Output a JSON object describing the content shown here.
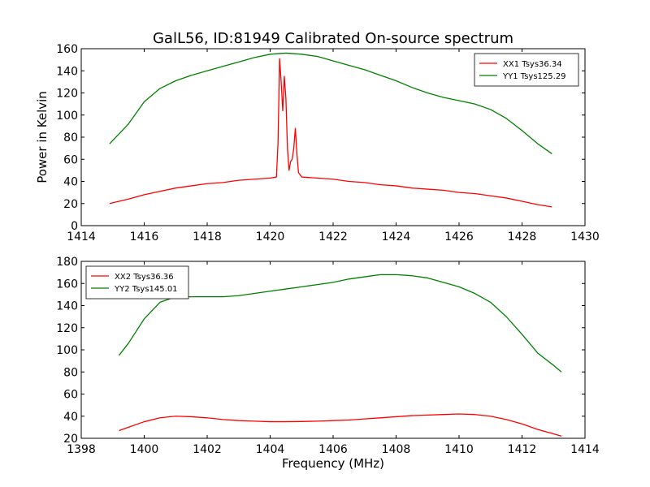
{
  "figure": {
    "title": "GalL56, ID:81949 Calibrated On-source spectrum",
    "ylabel": "Power in Kelvin",
    "xlabel": "Frequency (MHz)"
  },
  "chart_data": [
    {
      "type": "line",
      "title": "GalL56, ID:81949 Calibrated On-source spectrum",
      "xlabel": "",
      "ylabel": "Power in Kelvin",
      "xlim": [
        1414,
        1430
      ],
      "ylim": [
        0,
        160
      ],
      "xticks": [
        1414,
        1416,
        1418,
        1420,
        1422,
        1424,
        1426,
        1428,
        1430
      ],
      "yticks": [
        0,
        20,
        40,
        60,
        80,
        100,
        120,
        140,
        160
      ],
      "grid": false,
      "legend": "upper-right",
      "series": [
        {
          "name": "XX1 Tsys36.34",
          "color": "#ff0000",
          "x": [
            1414.9,
            1415.5,
            1416.0,
            1416.5,
            1417.0,
            1417.5,
            1418.0,
            1418.5,
            1419.0,
            1419.5,
            1420.0,
            1420.2,
            1420.25,
            1420.3,
            1420.35,
            1420.4,
            1420.45,
            1420.5,
            1420.55,
            1420.6,
            1420.65,
            1420.7,
            1420.75,
            1420.8,
            1420.85,
            1420.9,
            1421.0,
            1421.5,
            1422.0,
            1422.5,
            1423.0,
            1423.5,
            1424.0,
            1424.5,
            1425.0,
            1425.5,
            1426.0,
            1426.5,
            1427.0,
            1427.5,
            1428.0,
            1428.5,
            1428.95
          ],
          "y": [
            20,
            24,
            28,
            31,
            34,
            36,
            38,
            39,
            41,
            42,
            43,
            44,
            75,
            151,
            130,
            104,
            135,
            115,
            70,
            50,
            58,
            60,
            70,
            88,
            65,
            48,
            44,
            43,
            42,
            40,
            39,
            37,
            36,
            34,
            33,
            32,
            30,
            29,
            27,
            25,
            22,
            19,
            17
          ]
        },
        {
          "name": "YY1 Tsys125.29",
          "color": "#008000",
          "x": [
            1414.9,
            1415.5,
            1416.0,
            1416.5,
            1417.0,
            1417.5,
            1418.0,
            1418.5,
            1419.0,
            1419.5,
            1420.0,
            1420.5,
            1421.0,
            1421.5,
            1422.0,
            1422.5,
            1423.0,
            1423.5,
            1424.0,
            1424.5,
            1425.0,
            1425.5,
            1426.0,
            1426.5,
            1427.0,
            1427.5,
            1428.0,
            1428.5,
            1428.95
          ],
          "y": [
            74,
            92,
            112,
            124,
            131,
            136,
            140,
            144,
            148,
            152,
            155,
            156,
            155,
            153,
            149,
            145,
            141,
            136,
            131,
            125,
            120,
            116,
            113,
            110,
            105,
            97,
            86,
            74,
            65
          ]
        }
      ]
    },
    {
      "type": "line",
      "title": "",
      "xlabel": "Frequency (MHz)",
      "ylabel": "",
      "xlim": [
        1398,
        1414
      ],
      "ylim": [
        20,
        180
      ],
      "xticks": [
        1398,
        1400,
        1402,
        1404,
        1406,
        1408,
        1410,
        1412,
        1414
      ],
      "yticks": [
        20,
        40,
        60,
        80,
        100,
        120,
        140,
        160,
        180
      ],
      "grid": false,
      "legend": "upper-left",
      "series": [
        {
          "name": "XX2 Tsys36.36",
          "color": "#ff0000",
          "x": [
            1399.2,
            1399.5,
            1400.0,
            1400.5,
            1401.0,
            1401.5,
            1402.0,
            1402.5,
            1403.0,
            1403.5,
            1404.0,
            1404.5,
            1405.0,
            1405.5,
            1406.0,
            1406.5,
            1407.0,
            1407.5,
            1408.0,
            1408.5,
            1409.0,
            1409.5,
            1410.0,
            1410.5,
            1411.0,
            1411.5,
            1412.0,
            1412.5,
            1413.0,
            1413.25
          ],
          "y": [
            27,
            30,
            35,
            38.5,
            40,
            39.5,
            38.5,
            37,
            36,
            35.5,
            35,
            35,
            35.2,
            35.5,
            36,
            36.5,
            37.5,
            38.5,
            39.5,
            40.5,
            41,
            41.5,
            42,
            41.5,
            40,
            37,
            33,
            28,
            24,
            22
          ]
        },
        {
          "name": "YY2 Tsys145.01",
          "color": "#008000",
          "x": [
            1399.2,
            1399.5,
            1400.0,
            1400.5,
            1401.0,
            1401.5,
            1402.0,
            1402.5,
            1403.0,
            1403.5,
            1404.0,
            1404.5,
            1405.0,
            1405.5,
            1406.0,
            1406.5,
            1407.0,
            1407.5,
            1408.0,
            1408.5,
            1409.0,
            1409.5,
            1410.0,
            1410.5,
            1411.0,
            1411.5,
            1412.0,
            1412.5,
            1413.0,
            1413.25
          ],
          "y": [
            95,
            106,
            128,
            143,
            148,
            148,
            148,
            148,
            149,
            151,
            153,
            155,
            157,
            159,
            161,
            164,
            166,
            168,
            168,
            167,
            165,
            161,
            157,
            151,
            143,
            130,
            114,
            97,
            86,
            80
          ]
        }
      ]
    }
  ]
}
